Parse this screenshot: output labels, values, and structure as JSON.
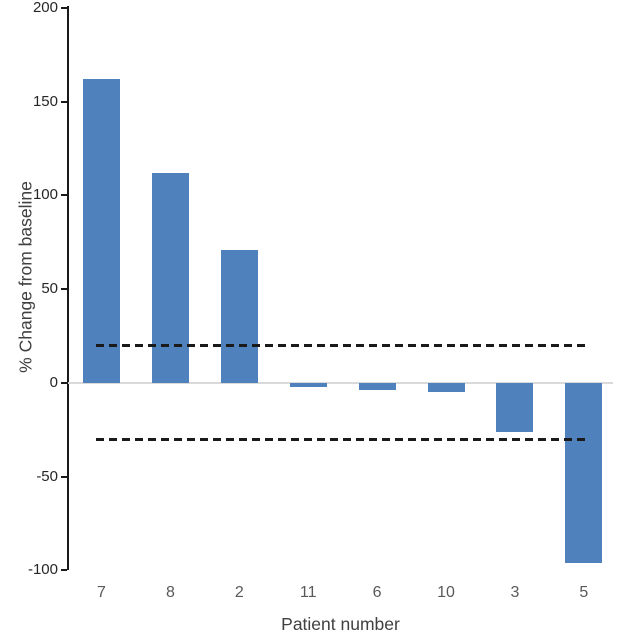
{
  "figure": {
    "background": "#ffffff"
  },
  "chart_data": {
    "type": "bar",
    "title": "",
    "xlabel": "Patient number",
    "ylabel": "% Change from baseline",
    "categories": [
      "7",
      "8",
      "2",
      "11",
      "6",
      "10",
      "3",
      "5"
    ],
    "values": [
      162,
      112,
      71,
      -2,
      -4,
      -5,
      -26,
      -96
    ],
    "ylim": [
      -100,
      200
    ],
    "yticks": [
      200,
      150,
      100,
      50,
      0,
      -50,
      -100
    ],
    "reference_lines": [
      {
        "value": 20,
        "style": "dashed",
        "color": "#1a1a1a"
      },
      {
        "value": -30,
        "style": "dashed",
        "color": "#1a1a1a"
      }
    ],
    "bar_color": "#4f81bd",
    "axis_color": "#1a1a1a",
    "zero_line_color": "#d9d9d9",
    "grid": false,
    "legend_position": "none"
  }
}
